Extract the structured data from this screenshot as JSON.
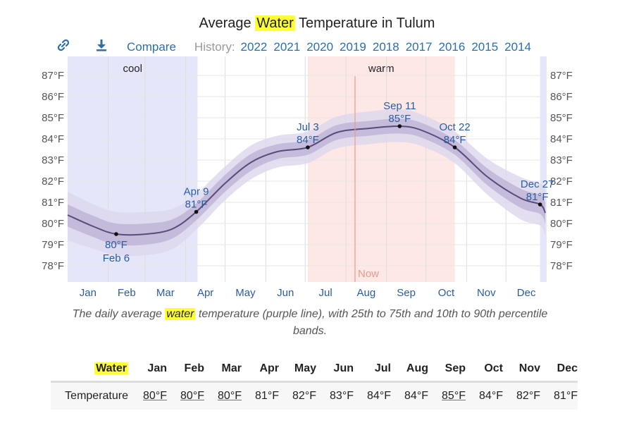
{
  "title": {
    "pre": "Average ",
    "highlight": "Water",
    "post": " Temperature in Tulum"
  },
  "toolbar": {
    "link_icon": "link-icon",
    "download_icon": "download-icon",
    "compare_label": "Compare",
    "history_label": "History:",
    "years": [
      "2022",
      "2021",
      "2020",
      "2019",
      "2018",
      "2017",
      "2016",
      "2015",
      "2014"
    ]
  },
  "chart_data": {
    "type": "line",
    "title": "Average Water Temperature in Tulum",
    "y_ticks": [
      "78°F",
      "79°F",
      "80°F",
      "81°F",
      "82°F",
      "83°F",
      "84°F",
      "85°F",
      "86°F",
      "87°F"
    ],
    "ylim": [
      77.2,
      87.9
    ],
    "x_ticks": [
      "Jan",
      "Feb",
      "Mar",
      "Apr",
      "May",
      "Jun",
      "Jul",
      "Aug",
      "Sep",
      "Oct",
      "Nov",
      "Dec"
    ],
    "grid": true,
    "colors": {
      "line": "#5b4a7a",
      "inner_band": "#bdb3d6",
      "outer_band": "#dcd7ec",
      "cool": "#e6e6fa",
      "warm": "#fde8e6",
      "now": "#e89a8e"
    },
    "seasons": [
      {
        "label": "cool",
        "start": "Jan 1",
        "end": "Apr 9"
      },
      {
        "label": "warm",
        "start": "Jul 3",
        "end": "Oct 22"
      },
      {
        "label": "",
        "start": "Dec 27",
        "end": "Dec 31"
      }
    ],
    "now": {
      "label": "Now",
      "date": "Aug 8"
    },
    "series": {
      "day_of_year": [
        0,
        20,
        37,
        60,
        80,
        98,
        120,
        140,
        160,
        183,
        205,
        230,
        253,
        270,
        295,
        320,
        345,
        360,
        364
      ],
      "mean": [
        80.4,
        79.85,
        79.5,
        79.5,
        79.75,
        80.55,
        81.9,
        82.9,
        83.4,
        83.6,
        84.3,
        84.5,
        84.6,
        84.4,
        83.6,
        82.2,
        81.2,
        80.9,
        80.5
      ],
      "p25": [
        79.85,
        79.35,
        79.0,
        79.0,
        79.3,
        80.15,
        81.5,
        82.5,
        83.05,
        83.25,
        83.95,
        84.15,
        84.25,
        84.05,
        83.25,
        81.8,
        80.75,
        80.45,
        80.0
      ],
      "p75": [
        80.9,
        80.35,
        80.0,
        80.0,
        80.2,
        80.95,
        82.3,
        83.3,
        83.75,
        83.95,
        84.65,
        84.85,
        84.95,
        84.75,
        83.95,
        82.6,
        81.65,
        81.35,
        81.0
      ],
      "p10": [
        79.2,
        78.8,
        78.5,
        78.5,
        78.8,
        79.7,
        81.1,
        82.1,
        82.65,
        82.85,
        83.55,
        83.75,
        83.85,
        83.65,
        82.85,
        81.35,
        80.2,
        79.9,
        79.4
      ],
      "p90": [
        81.5,
        80.9,
        80.55,
        80.55,
        80.7,
        81.4,
        82.7,
        83.7,
        84.15,
        84.35,
        85.05,
        85.3,
        85.4,
        85.15,
        84.35,
        83.05,
        82.2,
        81.9,
        81.6
      ]
    },
    "annotations": [
      {
        "day": 37,
        "value": 79.5,
        "date": "Feb 6",
        "temp": "80°F",
        "pos": "below"
      },
      {
        "day": 98,
        "value": 80.55,
        "date": "Apr 9",
        "temp": "81°F",
        "pos": "above"
      },
      {
        "day": 183,
        "value": 83.6,
        "date": "Jul 3",
        "temp": "84°F",
        "pos": "above"
      },
      {
        "day": 253,
        "value": 84.6,
        "date": "Sep 11",
        "temp": "85°F",
        "pos": "above"
      },
      {
        "day": 295,
        "value": 83.6,
        "date": "Oct 22",
        "temp": "84°F",
        "pos": "above"
      },
      {
        "day": 360,
        "value": 80.9,
        "date": "Dec 27",
        "temp": "81°F",
        "pos": "above"
      }
    ]
  },
  "caption": {
    "pre": "The daily average ",
    "highlight": "water",
    "post": " temperature (purple line), with 25th to 75th and 10th to 90th percentile bands."
  },
  "table": {
    "header_label": "Water",
    "months": [
      "Jan",
      "Feb",
      "Mar",
      "Apr",
      "May",
      "Jun",
      "Jul",
      "Aug",
      "Sep",
      "Oct",
      "Nov",
      "Dec"
    ],
    "row_label": "Temperature",
    "values": [
      "80°F",
      "80°F",
      "80°F",
      "81°F",
      "82°F",
      "83°F",
      "84°F",
      "84°F",
      "85°F",
      "84°F",
      "82°F",
      "81°F"
    ],
    "underlined": [
      true,
      true,
      true,
      false,
      false,
      false,
      false,
      false,
      true,
      false,
      false,
      false
    ]
  }
}
